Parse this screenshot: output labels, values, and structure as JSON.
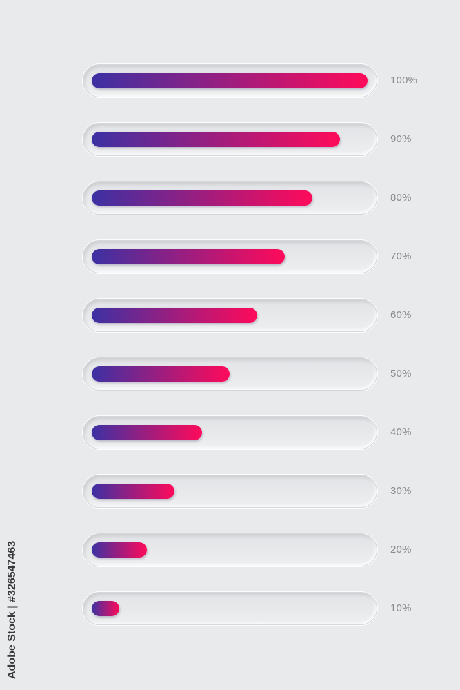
{
  "colors": {
    "background": "#e9eaec",
    "gradient_start": "#3c31a3",
    "gradient_end": "#ff0a5a",
    "label": "#8a8b8e"
  },
  "bars": [
    {
      "label": "100%",
      "value": 1.0
    },
    {
      "label": "90%",
      "value": 0.9
    },
    {
      "label": "80%",
      "value": 0.8
    },
    {
      "label": "70%",
      "value": 0.7
    },
    {
      "label": "60%",
      "value": 0.6
    },
    {
      "label": "50%",
      "value": 0.5
    },
    {
      "label": "40%",
      "value": 0.4
    },
    {
      "label": "30%",
      "value": 0.3
    },
    {
      "label": "20%",
      "value": 0.2
    },
    {
      "label": "10%",
      "value": 0.1
    }
  ],
  "watermark": {
    "side_text": "Adobe Stock | #326547463"
  }
}
